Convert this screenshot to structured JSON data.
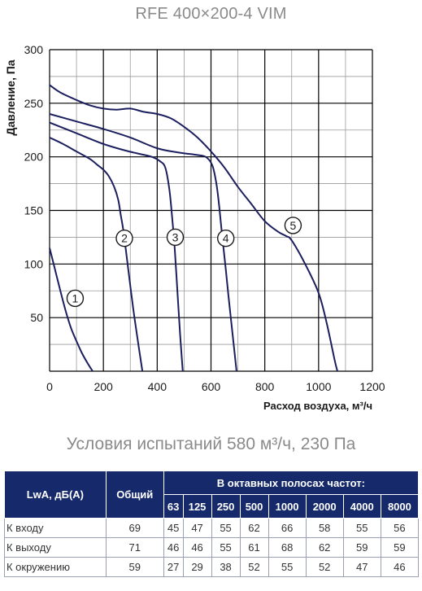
{
  "title": "RFE 400×200-4 VIM",
  "colors": {
    "curve": "#1b1f5e",
    "grid_major": "#000000",
    "grid_minor": "#9a9a9a",
    "table_header": "#162a6b"
  },
  "chart_data": {
    "type": "line",
    "ylabel": "Давление, Па",
    "xlabel": "Расход воздуха, м³/ч",
    "xlim": [
      0,
      1200
    ],
    "ylim": [
      0,
      300
    ],
    "x_ticks": [
      "0",
      "200",
      "400",
      "600",
      "800",
      "1000",
      "1200"
    ],
    "y_ticks": [
      "50",
      "100",
      "150",
      "200",
      "250",
      "300"
    ],
    "grid": true,
    "series": [
      {
        "name": "1",
        "label_at": [
          95,
          68
        ],
        "points": [
          [
            0,
            115
          ],
          [
            20,
            95
          ],
          [
            40,
            75
          ],
          [
            60,
            56
          ],
          [
            80,
            40
          ],
          [
            100,
            28
          ],
          [
            120,
            17
          ],
          [
            140,
            8
          ],
          [
            160,
            0
          ]
        ]
      },
      {
        "name": "2",
        "label_at": [
          278,
          124
        ],
        "points": [
          [
            0,
            218
          ],
          [
            50,
            212
          ],
          [
            100,
            205
          ],
          [
            150,
            198
          ],
          [
            180,
            192
          ],
          [
            200,
            188
          ],
          [
            220,
            182
          ],
          [
            240,
            172
          ],
          [
            255,
            160
          ],
          [
            265,
            145
          ],
          [
            275,
            130
          ],
          [
            290,
            100
          ],
          [
            310,
            60
          ],
          [
            330,
            25
          ],
          [
            345,
            0
          ]
        ]
      },
      {
        "name": "3",
        "label_at": [
          467,
          125
        ],
        "points": [
          [
            0,
            232
          ],
          [
            100,
            222
          ],
          [
            200,
            212
          ],
          [
            280,
            206
          ],
          [
            330,
            203
          ],
          [
            380,
            200
          ],
          [
            410,
            196
          ],
          [
            430,
            190
          ],
          [
            445,
            170
          ],
          [
            455,
            145
          ],
          [
            465,
            115
          ],
          [
            475,
            75
          ],
          [
            485,
            35
          ],
          [
            495,
            0
          ]
        ]
      },
      {
        "name": "4",
        "label_at": [
          655,
          124
        ],
        "points": [
          [
            0,
            240
          ],
          [
            100,
            233
          ],
          [
            200,
            226
          ],
          [
            300,
            218
          ],
          [
            400,
            208
          ],
          [
            480,
            204
          ],
          [
            540,
            202
          ],
          [
            580,
            200
          ],
          [
            605,
            192
          ],
          [
            620,
            175
          ],
          [
            630,
            155
          ],
          [
            640,
            130
          ],
          [
            655,
            95
          ],
          [
            665,
            70
          ],
          [
            680,
            35
          ],
          [
            695,
            0
          ]
        ]
      },
      {
        "name": "5",
        "label_at": [
          905,
          136
        ],
        "points": [
          [
            0,
            267
          ],
          [
            40,
            260
          ],
          [
            100,
            253
          ],
          [
            150,
            248
          ],
          [
            200,
            245
          ],
          [
            250,
            244
          ],
          [
            300,
            245
          ],
          [
            350,
            242
          ],
          [
            400,
            240
          ],
          [
            450,
            236
          ],
          [
            500,
            228
          ],
          [
            550,
            218
          ],
          [
            600,
            205
          ],
          [
            650,
            190
          ],
          [
            700,
            172
          ],
          [
            750,
            156
          ],
          [
            800,
            140
          ],
          [
            850,
            130
          ],
          [
            880,
            126
          ],
          [
            900,
            122
          ],
          [
            950,
            100
          ],
          [
            1000,
            73
          ],
          [
            1030,
            45
          ],
          [
            1060,
            10
          ],
          [
            1070,
            0
          ]
        ]
      }
    ]
  },
  "test_conditions": "Условия испытаний 580 м³/ч, 230 Па",
  "table": {
    "header_lwa": "LwA, дБ(A)",
    "header_total": "Общий",
    "header_bands": "В октавных полосах частот:",
    "frequencies": [
      "63",
      "125",
      "250",
      "500",
      "1000",
      "2000",
      "4000",
      "8000"
    ],
    "rows": [
      {
        "label": "К входу",
        "total": "69",
        "values": [
          "45",
          "47",
          "55",
          "62",
          "66",
          "58",
          "55",
          "56"
        ]
      },
      {
        "label": "К выходу",
        "total": "71",
        "values": [
          "46",
          "46",
          "55",
          "61",
          "68",
          "62",
          "59",
          "59"
        ]
      },
      {
        "label": "К окружению",
        "total": "59",
        "values": [
          "27",
          "29",
          "38",
          "52",
          "55",
          "52",
          "47",
          "46"
        ]
      }
    ]
  }
}
